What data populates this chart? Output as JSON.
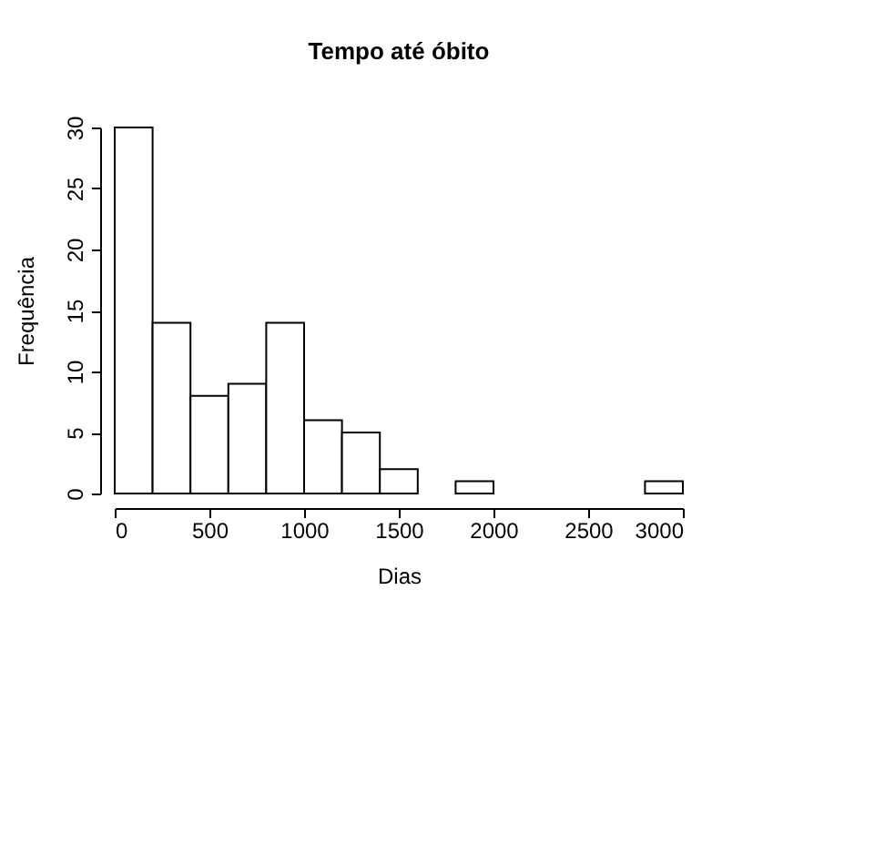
{
  "chart_data": {
    "type": "histogram",
    "title": "Tempo até óbito",
    "xlabel": "Dias",
    "ylabel": "Frequência",
    "bins": [
      0,
      200,
      400,
      600,
      800,
      1000,
      1200,
      1400,
      1600,
      1800,
      2000,
      2200,
      2400,
      2600,
      2800,
      3000
    ],
    "values": [
      30,
      14,
      8,
      9,
      14,
      6,
      5,
      2,
      0,
      1,
      0,
      0,
      0,
      0,
      1
    ],
    "color": "#ffffff",
    "xlim": [
      0,
      3000
    ],
    "xticks": [
      0,
      500,
      1000,
      1500,
      2000,
      2500,
      3000
    ],
    "ylim": [
      0,
      30
    ],
    "yticks": [
      0,
      5,
      10,
      15,
      20,
      25,
      30
    ],
    "grid": false
  }
}
